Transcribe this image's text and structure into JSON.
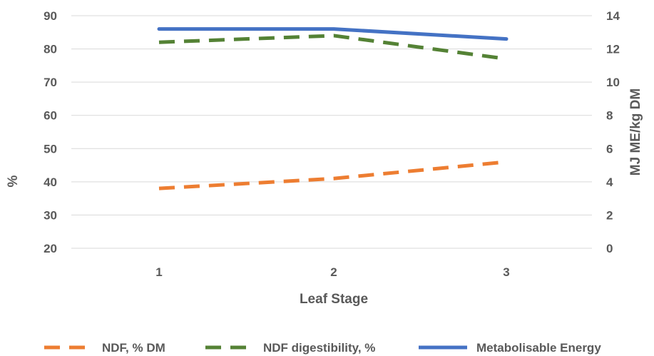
{
  "chart_data": {
    "type": "line",
    "categories": [
      "1",
      "2",
      "3"
    ],
    "xlabel": "Leaf Stage",
    "ylabel_left": "%",
    "ylabel_right": "MJ ME/kg DM",
    "ylim_left": [
      20,
      90
    ],
    "ylim_right": [
      0,
      14
    ],
    "yticks_left": [
      "20",
      "30",
      "40",
      "50",
      "60",
      "70",
      "80",
      "90"
    ],
    "yticks_right": [
      "0",
      "2",
      "4",
      "6",
      "8",
      "10",
      "12",
      "14"
    ],
    "grid": true,
    "legend_position": "bottom",
    "series": [
      {
        "name": "NDF, % DM",
        "axis": "left",
        "values": [
          38,
          41,
          46
        ],
        "color": "#ED7D31",
        "style": "dashed"
      },
      {
        "name": "NDF digestibility, %",
        "axis": "left",
        "values": [
          82,
          84,
          77
        ],
        "color": "#548235",
        "style": "dashed"
      },
      {
        "name": "Metabolisable Energy",
        "axis": "right",
        "values": [
          13.2,
          13.2,
          12.6
        ],
        "color": "#4472C4",
        "style": "solid"
      }
    ]
  }
}
